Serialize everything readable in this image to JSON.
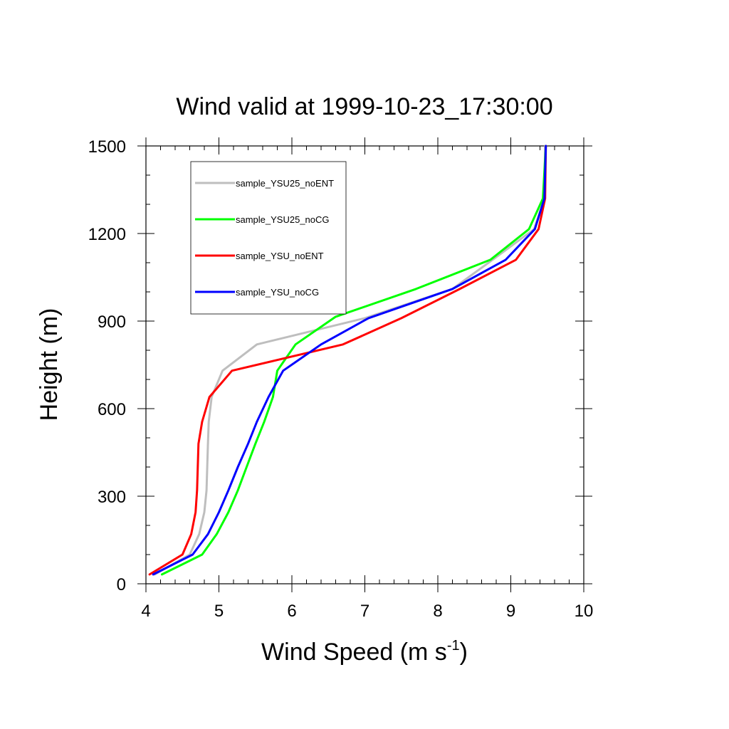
{
  "chart_data": {
    "type": "line",
    "title": "Wind valid at 1999-10-23_17:30:00",
    "xlabel": "Wind Speed (m s",
    "xlabel_superscript": "-1",
    "xlabel_close": ")",
    "ylabel": "Height (m)",
    "xlim": [
      4,
      10
    ],
    "ylim": [
      0,
      1500
    ],
    "x_ticks": [
      4,
      5,
      6,
      7,
      8,
      9,
      10
    ],
    "y_ticks": [
      0,
      300,
      600,
      900,
      1200,
      1500
    ],
    "x_tick_labels": [
      "4",
      "5",
      "6",
      "7",
      "8",
      "9",
      "10"
    ],
    "y_tick_labels": [
      "0",
      "300",
      "600",
      "900",
      "1200",
      "1500"
    ],
    "grid": false,
    "legend_position": "top-left",
    "series": [
      {
        "name": "sample_YSU25_noENT",
        "color": "#bebebe",
        "points": [
          [
            4.12,
            32
          ],
          [
            4.6,
            100
          ],
          [
            4.73,
            170
          ],
          [
            4.8,
            245
          ],
          [
            4.83,
            320
          ],
          [
            4.84,
            400
          ],
          [
            4.85,
            480
          ],
          [
            4.86,
            555
          ],
          [
            4.9,
            640
          ],
          [
            5.05,
            730
          ],
          [
            5.52,
            820
          ],
          [
            7.0,
            910
          ],
          [
            8.2,
            1010
          ],
          [
            8.75,
            1110
          ],
          [
            9.32,
            1215
          ],
          [
            9.46,
            1320
          ],
          [
            9.47,
            1500
          ]
        ]
      },
      {
        "name": "sample_YSU25_noCG",
        "color": "#00ff00",
        "points": [
          [
            4.22,
            32
          ],
          [
            4.77,
            100
          ],
          [
            4.97,
            170
          ],
          [
            5.13,
            245
          ],
          [
            5.26,
            320
          ],
          [
            5.38,
            400
          ],
          [
            5.5,
            480
          ],
          [
            5.62,
            555
          ],
          [
            5.74,
            640
          ],
          [
            5.8,
            730
          ],
          [
            6.05,
            820
          ],
          [
            6.6,
            915
          ],
          [
            7.7,
            1010
          ],
          [
            8.72,
            1110
          ],
          [
            9.25,
            1215
          ],
          [
            9.44,
            1320
          ],
          [
            9.48,
            1500
          ]
        ]
      },
      {
        "name": "sample_YSU_noENT",
        "color": "#ff0000",
        "points": [
          [
            4.05,
            32
          ],
          [
            4.5,
            100
          ],
          [
            4.62,
            170
          ],
          [
            4.68,
            245
          ],
          [
            4.7,
            320
          ],
          [
            4.71,
            400
          ],
          [
            4.72,
            480
          ],
          [
            4.77,
            555
          ],
          [
            4.87,
            640
          ],
          [
            5.18,
            730
          ],
          [
            6.7,
            820
          ],
          [
            7.5,
            910
          ],
          [
            8.3,
            1010
          ],
          [
            9.07,
            1110
          ],
          [
            9.38,
            1215
          ],
          [
            9.47,
            1320
          ],
          [
            9.48,
            1500
          ]
        ]
      },
      {
        "name": "sample_YSU_noCG",
        "color": "#0000ff",
        "points": [
          [
            4.1,
            32
          ],
          [
            4.64,
            100
          ],
          [
            4.85,
            170
          ],
          [
            5.0,
            245
          ],
          [
            5.13,
            320
          ],
          [
            5.26,
            400
          ],
          [
            5.4,
            480
          ],
          [
            5.52,
            555
          ],
          [
            5.68,
            640
          ],
          [
            5.88,
            730
          ],
          [
            6.4,
            820
          ],
          [
            7.05,
            910
          ],
          [
            8.2,
            1010
          ],
          [
            8.93,
            1110
          ],
          [
            9.33,
            1215
          ],
          [
            9.46,
            1320
          ],
          [
            9.48,
            1500
          ]
        ]
      }
    ]
  }
}
